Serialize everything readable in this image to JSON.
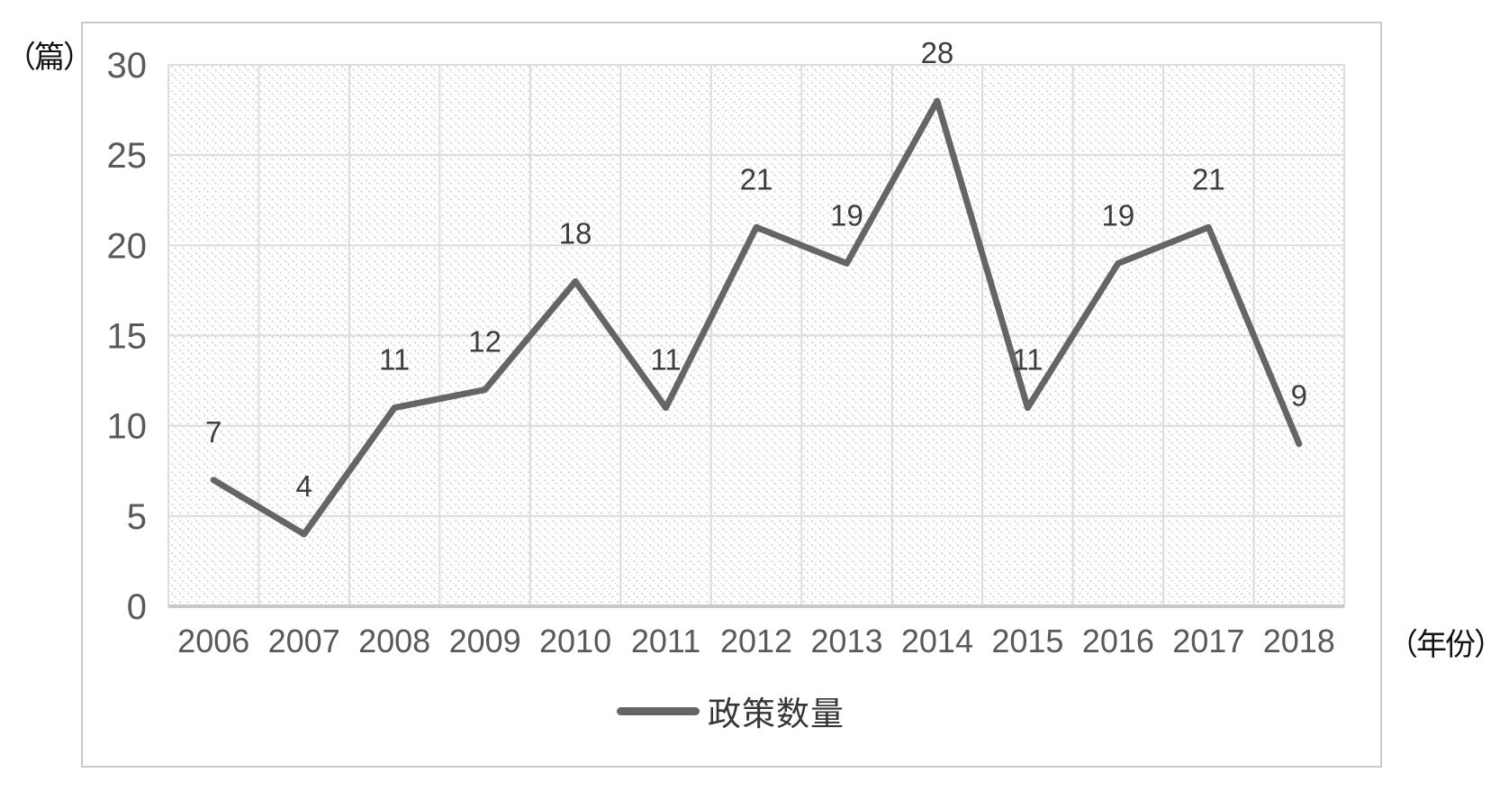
{
  "chart_data": {
    "type": "line",
    "categories": [
      "2006",
      "2007",
      "2008",
      "2009",
      "2010",
      "2011",
      "2012",
      "2013",
      "2014",
      "2015",
      "2016",
      "2017",
      "2018"
    ],
    "series": [
      {
        "name": "政策数量",
        "values": [
          7,
          4,
          11,
          12,
          18,
          11,
          21,
          19,
          28,
          11,
          19,
          21,
          9
        ]
      }
    ],
    "title": "",
    "xlabel": "（年份）",
    "ylabel": "（篇）",
    "ylim": [
      0,
      30
    ],
    "yticks": [
      0,
      5,
      10,
      15,
      20,
      25,
      30
    ],
    "grid": "both",
    "legend_position": "bottom",
    "data_labels_visible": true,
    "plot_background": "diagonal-hatch"
  },
  "colors": {
    "line": "#656565",
    "grid": "#dcdcdc",
    "axis": "#c9c9c9",
    "hatch": "#d7d7d7",
    "tick_text": "#595959",
    "data_label_text": "#3d3d3d",
    "unit_text": "#111111",
    "legend_text": "#363636",
    "border": "#c9c9c9",
    "background": "#ffffff"
  }
}
